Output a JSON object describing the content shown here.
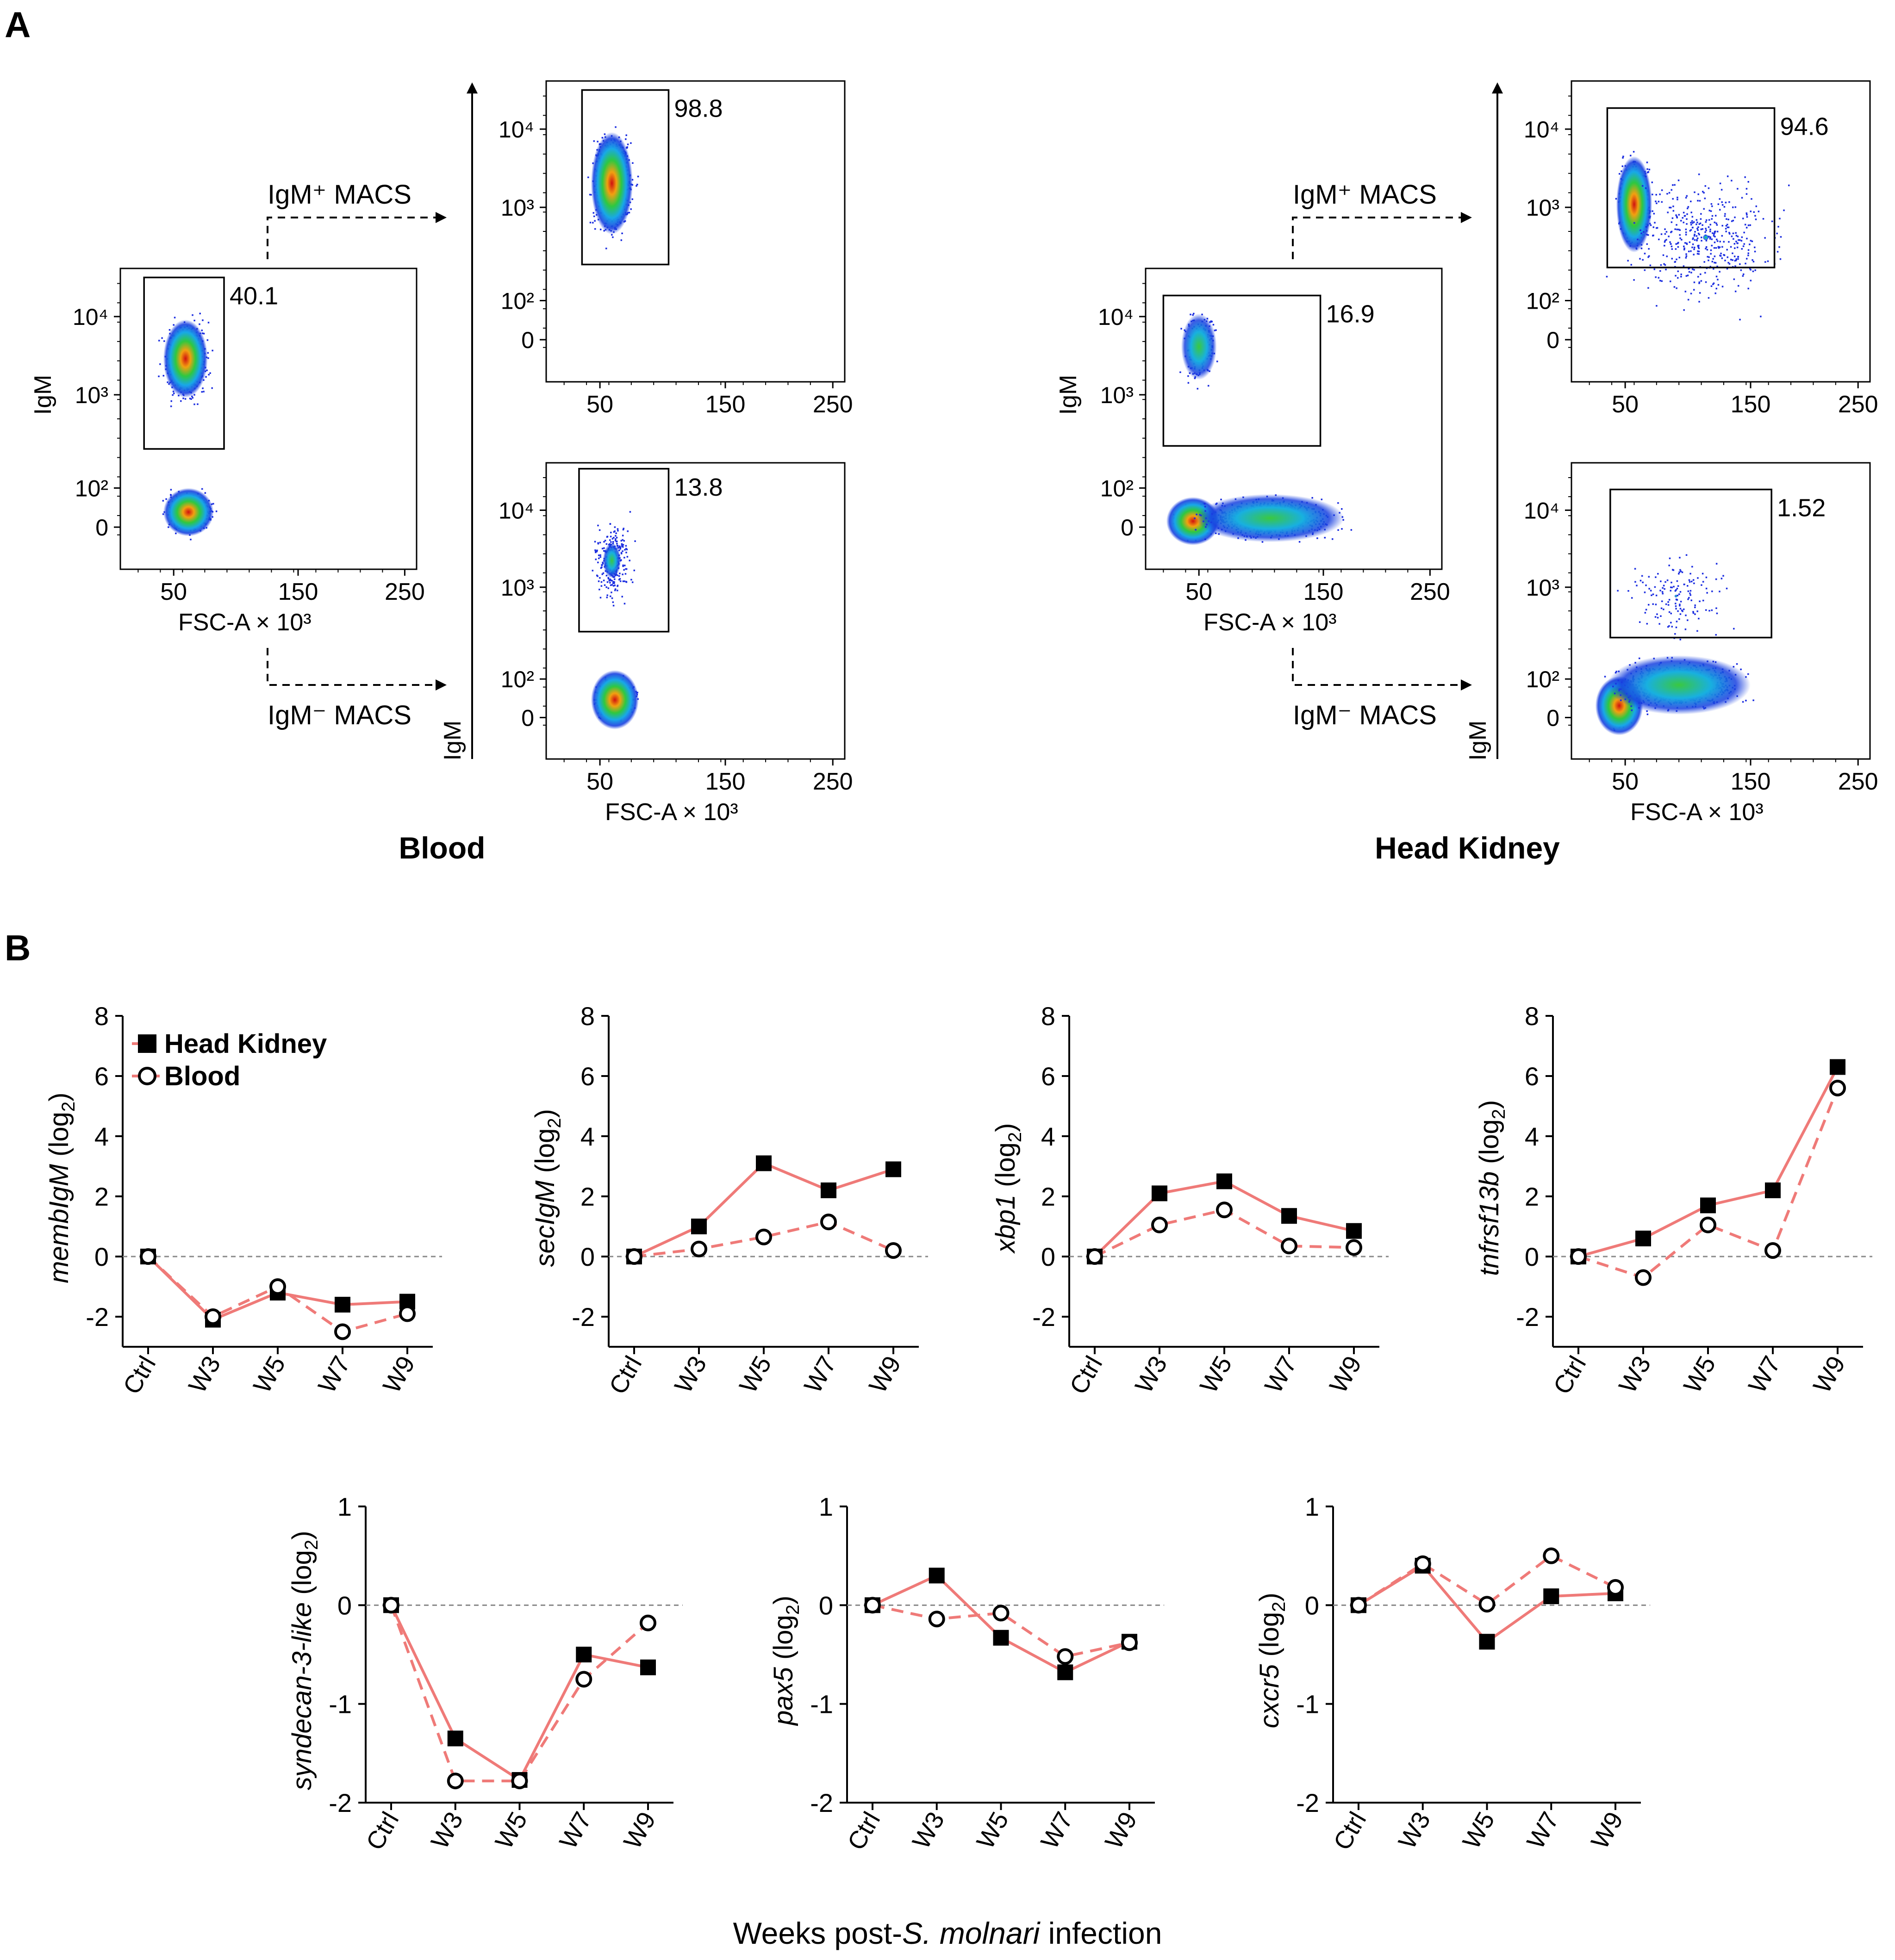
{
  "panel_a": {
    "label": "A",
    "y_tick_labels": [
      "10⁴",
      "10³",
      "10²",
      "0"
    ],
    "x_tick_labels": [
      "50",
      "150",
      "250"
    ],
    "y_axis_label": "IgM",
    "x_axis_label": "FSC-A × 10³",
    "groups": [
      {
        "title": "Blood",
        "arrow_plus_label": "IgM⁺ MACS",
        "arrow_minus_label": "IgM⁻ MACS",
        "pre_sort_gate": "40.1",
        "plus_gate": "98.8",
        "minus_gate": "13.8"
      },
      {
        "title": "Head Kidney",
        "arrow_plus_label": "IgM⁺ MACS",
        "arrow_minus_label": "IgM⁻ MACS",
        "pre_sort_gate": "16.9",
        "plus_gate": "94.6",
        "minus_gate": "1.52"
      }
    ]
  },
  "panel_b": {
    "label": "B",
    "x_axis_title_prefix": "Weeks post-",
    "x_axis_title_italic": "S. molnari",
    "x_axis_title_suffix": " infection",
    "legend": [
      {
        "name": "Head Kidney",
        "marker": "filled-square",
        "line": "solid"
      },
      {
        "name": "Blood",
        "marker": "open-circle",
        "line": "dashed"
      }
    ]
  },
  "colors": {
    "line": "#ef7a78",
    "marker": "#000000",
    "axis": "#000000",
    "zero_line": "#888888"
  },
  "chart_data": [
    {
      "type": "line",
      "gene": "membIgM",
      "ylabel_suffix": " (log",
      "ylabel_sub": "2",
      "ylabel_close": ")",
      "categories": [
        "Ctrl",
        "W3",
        "W5",
        "W7",
        "W9"
      ],
      "ylim": [
        -3,
        8
      ],
      "yticks": [
        "8",
        "6",
        "4",
        "2",
        "0",
        "-2"
      ],
      "ytick_values": [
        8,
        6,
        4,
        2,
        0,
        -2
      ],
      "series": [
        {
          "name": "Head Kidney",
          "values": [
            0,
            -2.1,
            -1.2,
            -1.6,
            -1.5
          ]
        },
        {
          "name": "Blood",
          "values": [
            0,
            -2.0,
            -1.0,
            -2.5,
            -1.9
          ]
        }
      ]
    },
    {
      "type": "line",
      "gene": "secIgM",
      "ylabel_suffix": " (log",
      "ylabel_sub": "2",
      "ylabel_close": ")",
      "categories": [
        "Ctrl",
        "W3",
        "W5",
        "W7",
        "W9"
      ],
      "ylim": [
        -3,
        8
      ],
      "yticks": [
        "8",
        "6",
        "4",
        "2",
        "0",
        "-2"
      ],
      "ytick_values": [
        8,
        6,
        4,
        2,
        0,
        -2
      ],
      "series": [
        {
          "name": "Head Kidney",
          "values": [
            0,
            1.0,
            3.1,
            2.2,
            2.9
          ]
        },
        {
          "name": "Blood",
          "values": [
            0,
            0.25,
            0.65,
            1.15,
            0.2
          ]
        }
      ]
    },
    {
      "type": "line",
      "gene": "xbp1",
      "ylabel_suffix": " (log",
      "ylabel_sub": "2",
      "ylabel_close": ")",
      "categories": [
        "Ctrl",
        "W3",
        "W5",
        "W7",
        "W9"
      ],
      "ylim": [
        -3,
        8
      ],
      "yticks": [
        "8",
        "6",
        "4",
        "2",
        "0",
        "-2"
      ],
      "ytick_values": [
        8,
        6,
        4,
        2,
        0,
        -2
      ],
      "series": [
        {
          "name": "Head Kidney",
          "values": [
            0,
            2.1,
            2.5,
            1.35,
            0.85
          ]
        },
        {
          "name": "Blood",
          "values": [
            0,
            1.05,
            1.55,
            0.35,
            0.3
          ]
        }
      ]
    },
    {
      "type": "line",
      "gene": "tnfrsf13b",
      "ylabel_suffix": " (log",
      "ylabel_sub": "2",
      "ylabel_close": ")",
      "categories": [
        "Ctrl",
        "W3",
        "W5",
        "W7",
        "W9"
      ],
      "ylim": [
        -3,
        8
      ],
      "yticks": [
        "8",
        "6",
        "4",
        "2",
        "0",
        "-2"
      ],
      "ytick_values": [
        8,
        6,
        4,
        2,
        0,
        -2
      ],
      "series": [
        {
          "name": "Head Kidney",
          "values": [
            0,
            0.6,
            1.7,
            2.2,
            6.3
          ]
        },
        {
          "name": "Blood",
          "values": [
            0,
            -0.7,
            1.05,
            0.2,
            5.6
          ]
        }
      ]
    },
    {
      "type": "line",
      "gene": "syndecan-3-like",
      "ylabel_suffix": " (log",
      "ylabel_sub": "2",
      "ylabel_close": ")",
      "categories": [
        "Ctrl",
        "W3",
        "W5",
        "W7",
        "W9"
      ],
      "ylim": [
        -2,
        1
      ],
      "yticks": [
        "1",
        "0",
        "-1",
        "-2"
      ],
      "ytick_values": [
        1,
        0,
        -1,
        -2
      ],
      "series": [
        {
          "name": "Head Kidney",
          "values": [
            0,
            -1.35,
            -1.77,
            -0.5,
            -0.63
          ]
        },
        {
          "name": "Blood",
          "values": [
            0,
            -1.78,
            -1.78,
            -0.75,
            -0.18
          ]
        }
      ]
    },
    {
      "type": "line",
      "gene": "pax5",
      "ylabel_suffix": " (log",
      "ylabel_sub": "2",
      "ylabel_close": ")",
      "categories": [
        "Ctrl",
        "W3",
        "W5",
        "W7",
        "W9"
      ],
      "ylim": [
        -2,
        1
      ],
      "yticks": [
        "1",
        "0",
        "-1",
        "-2"
      ],
      "ytick_values": [
        1,
        0,
        -1,
        -2
      ],
      "series": [
        {
          "name": "Head Kidney",
          "values": [
            0,
            0.3,
            -0.33,
            -0.68,
            -0.37
          ]
        },
        {
          "name": "Blood",
          "values": [
            0,
            -0.14,
            -0.08,
            -0.52,
            -0.38
          ]
        }
      ]
    },
    {
      "type": "line",
      "gene": "cxcr5",
      "ylabel_suffix": " (log",
      "ylabel_sub": "2",
      "ylabel_close": ")",
      "categories": [
        "Ctrl",
        "W3",
        "W5",
        "W7",
        "W9"
      ],
      "ylim": [
        -2,
        1
      ],
      "yticks": [
        "1",
        "0",
        "-1",
        "-2"
      ],
      "ytick_values": [
        1,
        0,
        -1,
        -2
      ],
      "series": [
        {
          "name": "Head Kidney",
          "values": [
            0,
            0.4,
            -0.37,
            0.09,
            0.12
          ]
        },
        {
          "name": "Blood",
          "values": [
            0,
            0.42,
            0.01,
            0.5,
            0.18
          ]
        }
      ]
    }
  ]
}
